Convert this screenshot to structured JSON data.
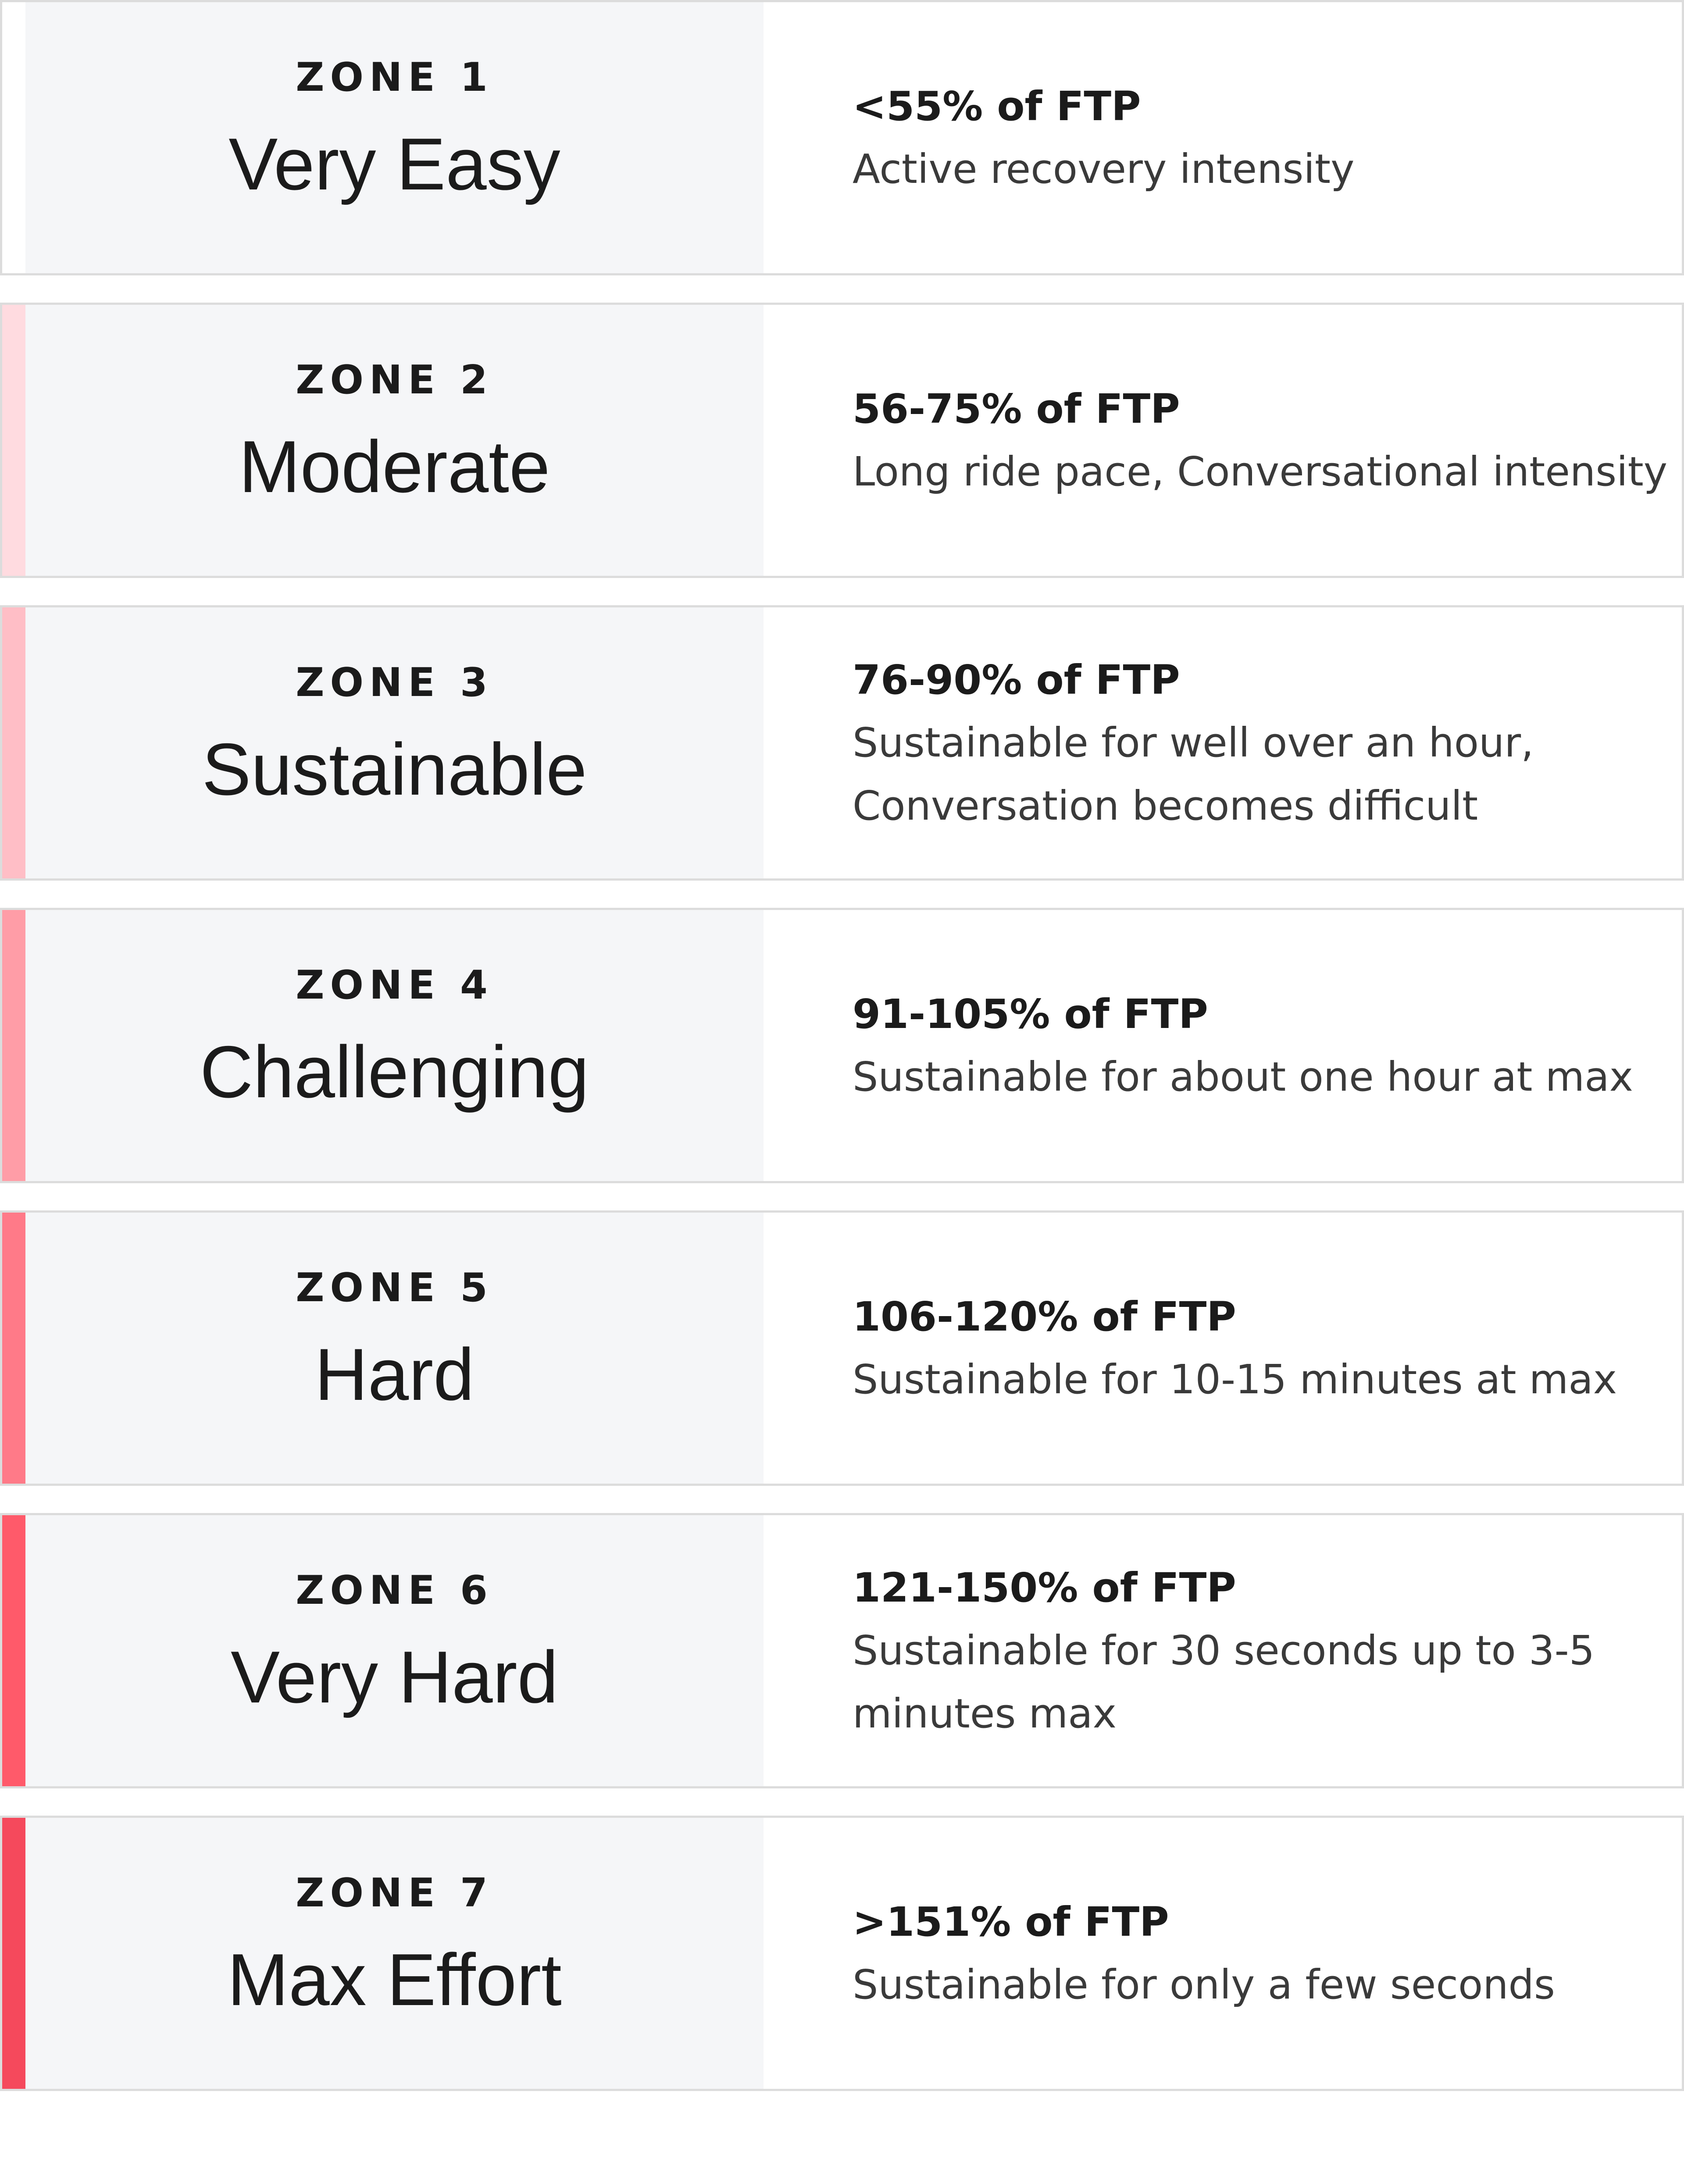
{
  "zones": [
    {
      "number": "ZONE 1",
      "name": "Very Easy",
      "ftp_range": "<55% of FTP",
      "description": "Active recovery intensity",
      "accent_color": "#ffffff"
    },
    {
      "number": "ZONE 2",
      "name": "Moderate",
      "ftp_range": "56-75% of FTP",
      "description": "Long ride pace, Conversational intensity",
      "accent_color": "#ffdbe0"
    },
    {
      "number": "ZONE 3",
      "name": "Sustainable",
      "ftp_range": "76-90% of FTP",
      "description": "Sustainable for well over an hour, Conversation becomes difficult",
      "accent_color": "#ffbec6"
    },
    {
      "number": "ZONE 4",
      "name": "Challenging",
      "ftp_range": "91-105% of FTP",
      "description": "Sustainable for about one hour at max",
      "accent_color": "#ff9da7"
    },
    {
      "number": "ZONE 5",
      "name": "Hard",
      "ftp_range": "106-120% of FTP",
      "description": "Sustainable for 10-15 minutes at max",
      "accent_color": "#ff7a88"
    },
    {
      "number": "ZONE 6",
      "name": "Very Hard",
      "ftp_range": "121-150% of FTP",
      "description": "Sustainable for 30 seconds up to 3-5 minutes max",
      "accent_color": "#ff5a6a"
    },
    {
      "number": "ZONE 7",
      "name": "Max Effort",
      "ftp_range": ">151% of FTP",
      "description": "Sustainable for only a few seconds",
      "accent_color": "#f5495c"
    }
  ]
}
